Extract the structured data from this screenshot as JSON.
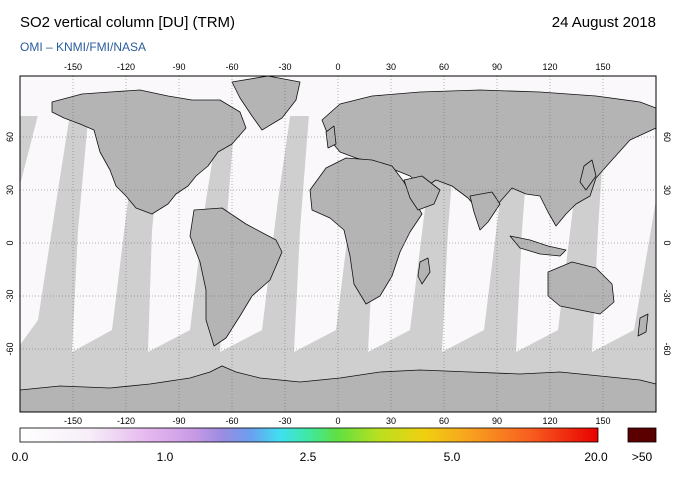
{
  "header": {
    "title": "SO2 vertical column [DU] (TRM)",
    "date": "24 August 2018",
    "credit": "OMI  –  KNMI/FMI/NASA"
  },
  "map": {
    "lon_ticks": [
      "-150",
      "-120",
      "-90",
      "-60",
      "-30",
      "0",
      "30",
      "60",
      "90",
      "120",
      "150"
    ],
    "lat_ticks": [
      "60",
      "30",
      "0",
      "-30",
      "-60"
    ],
    "colors": {
      "no_data": "#cfcfcf",
      "low_value": "#fbf8fc",
      "land_shadow": "#b4b4b4",
      "coast": "#111111"
    }
  },
  "colorbar": {
    "labels": [
      "0.0",
      "1.0",
      "2.5",
      "5.0",
      "20.0"
    ],
    "overflow_label": ">50",
    "overflow_color": "#5a0000"
  }
}
